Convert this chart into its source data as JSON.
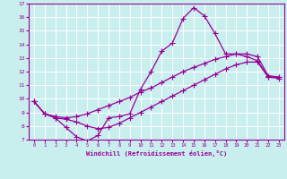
{
  "xlabel": "Windchill (Refroidissement éolien,°C)",
  "xlim": [
    -0.5,
    23.5
  ],
  "ylim": [
    7,
    17
  ],
  "bg_color": "#c8eeed",
  "grid_color": "#ffffff",
  "line_color": "#990099",
  "line1_x": [
    0,
    1,
    2,
    3,
    4,
    5,
    6,
    7,
    8,
    9,
    10,
    11,
    12,
    13,
    14,
    15,
    16,
    17,
    18,
    19,
    20,
    21,
    22,
    23
  ],
  "line1_y": [
    9.8,
    8.9,
    8.6,
    7.9,
    7.2,
    6.9,
    7.3,
    8.6,
    8.7,
    8.9,
    10.7,
    12.0,
    13.5,
    14.1,
    15.9,
    16.7,
    16.1,
    14.8,
    13.3,
    13.3,
    13.1,
    12.8,
    11.6,
    11.6
  ],
  "line2_x": [
    0,
    1,
    2,
    3,
    4,
    5,
    6,
    7,
    8,
    9,
    10,
    11,
    12,
    13,
    14,
    15,
    16,
    17,
    18,
    19,
    20,
    21,
    22,
    23
  ],
  "line2_y": [
    9.8,
    8.9,
    8.7,
    8.6,
    8.7,
    8.9,
    9.2,
    9.5,
    9.8,
    10.1,
    10.5,
    10.8,
    11.2,
    11.6,
    12.0,
    12.3,
    12.6,
    12.9,
    13.1,
    13.3,
    13.3,
    13.1,
    11.7,
    11.6
  ],
  "line3_x": [
    0,
    1,
    2,
    3,
    4,
    5,
    6,
    7,
    8,
    9,
    10,
    11,
    12,
    13,
    14,
    15,
    16,
    17,
    18,
    19,
    20,
    21,
    22,
    23
  ],
  "line3_y": [
    9.8,
    8.9,
    8.6,
    8.5,
    8.3,
    8.0,
    7.8,
    7.9,
    8.2,
    8.6,
    9.0,
    9.4,
    9.8,
    10.2,
    10.6,
    11.0,
    11.4,
    11.8,
    12.2,
    12.5,
    12.7,
    12.7,
    11.6,
    11.5
  ]
}
